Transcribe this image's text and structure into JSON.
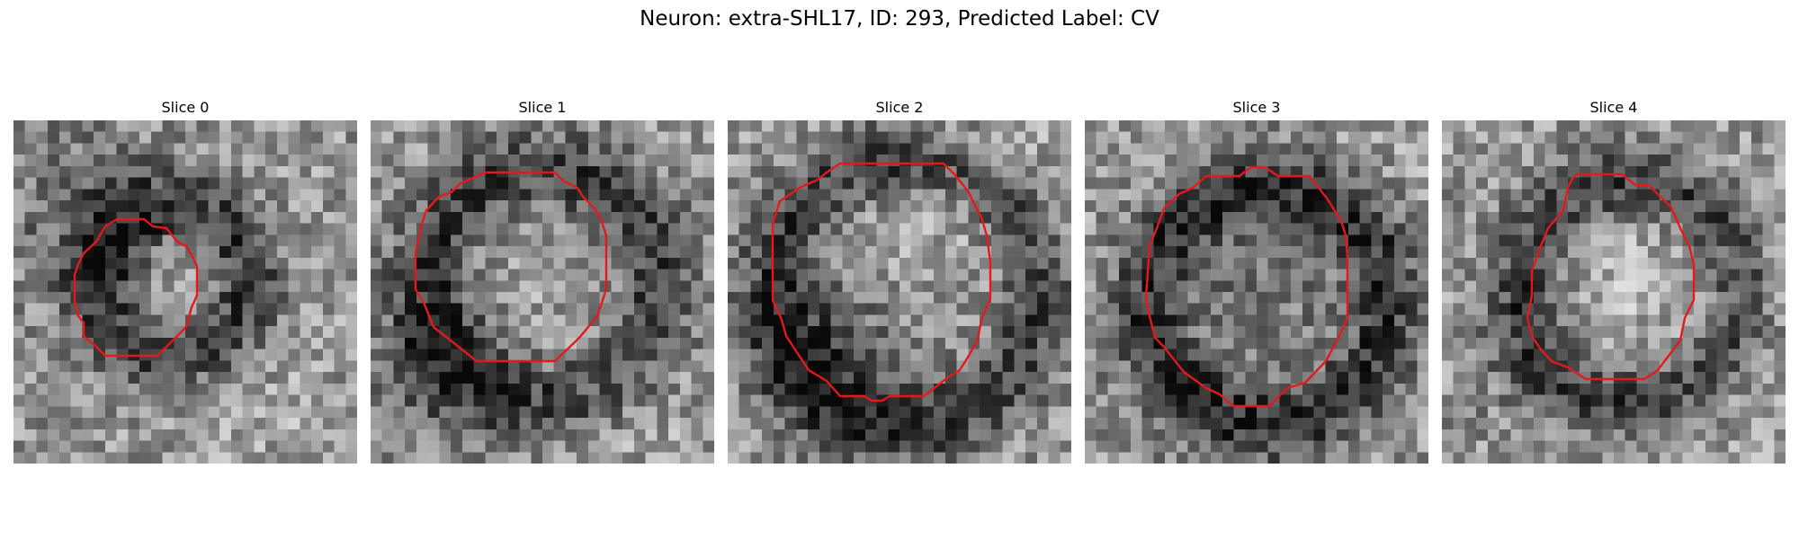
{
  "figure": {
    "title": "Neuron: extra-SHL17, ID: 293, Predicted Label: CV",
    "contour_color": "#e31a1c",
    "colormap": "gray"
  },
  "panels": [
    {
      "title": "Slice 0"
    },
    {
      "title": "Slice 1"
    },
    {
      "title": "Slice 2"
    },
    {
      "title": "Slice 3"
    },
    {
      "title": "Slice 4"
    }
  ]
}
